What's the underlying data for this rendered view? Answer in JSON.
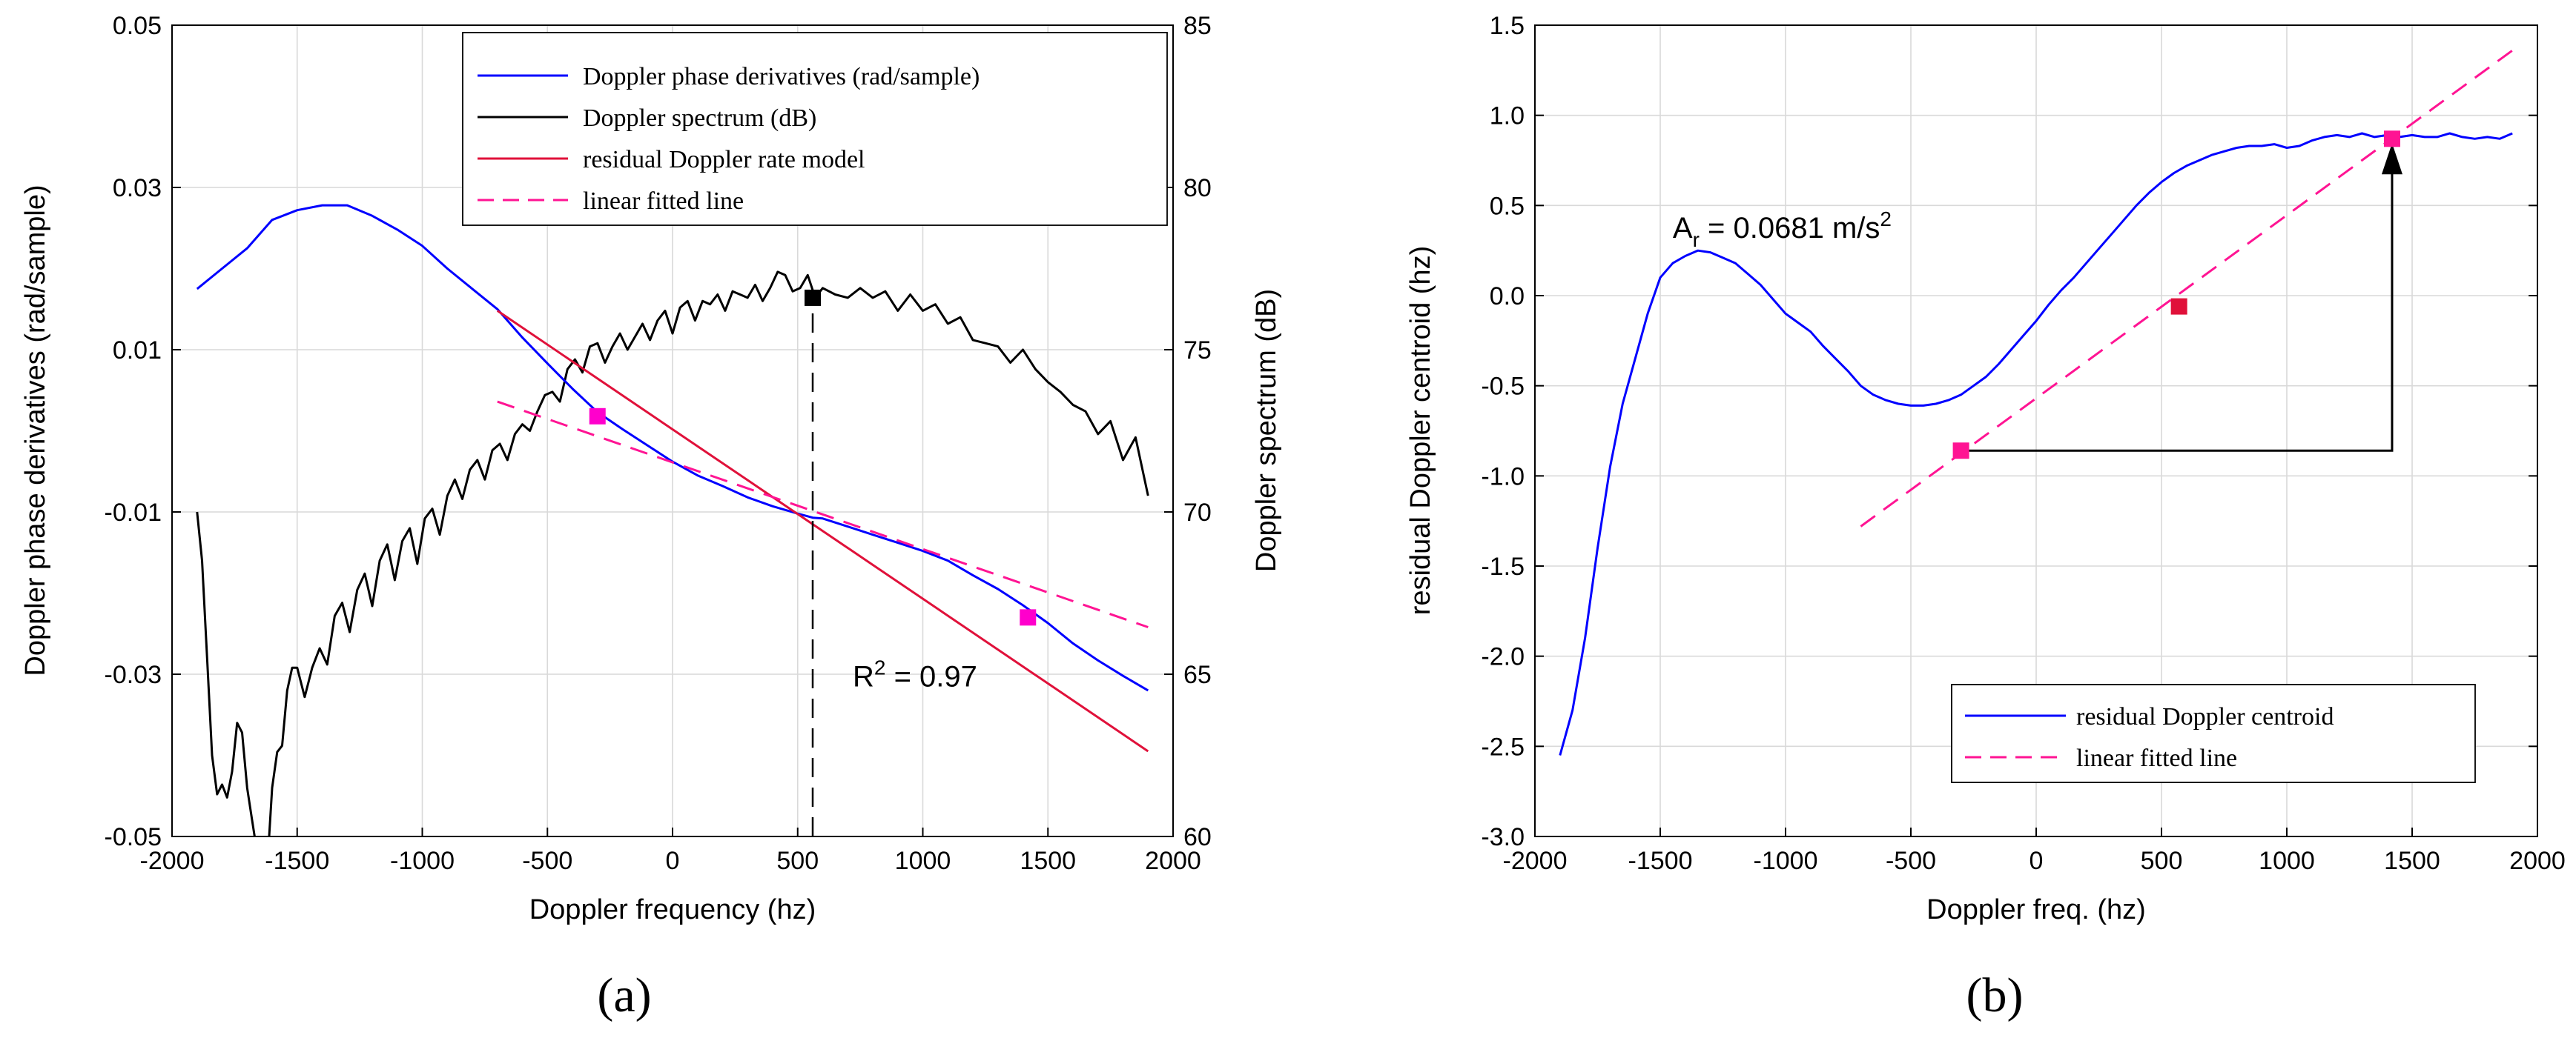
{
  "chart_data": [
    {
      "id": "a",
      "type": "line",
      "caption": "(a)",
      "xlabel": "Doppler frequency (hz)",
      "ylabel_left": "Doppler phase derivatives (rad/sample)",
      "ylabel_right": "Doppler spectrum (dB)",
      "xlim": [
        -2000,
        2000
      ],
      "ylim_left": [
        -0.05,
        0.05
      ],
      "ylim_right": [
        60,
        85
      ],
      "x_ticks": [
        "-2000",
        "-1500",
        "-1000",
        "-500",
        "0",
        "500",
        "1000",
        "1500",
        "2000"
      ],
      "y_left_ticks": [
        "-0.05",
        "-0.03",
        "-0.01",
        "0.01",
        "0.03",
        "0.05"
      ],
      "y_right_ticks": [
        "60",
        "65",
        "70",
        "75",
        "80",
        "85"
      ],
      "grid": true,
      "legend_position": "top-right",
      "series": [
        {
          "name": "Doppler phase derivatives (rad/sample)",
          "axis": "left",
          "color": "#0000ff",
          "style": "solid",
          "x": [
            -1900,
            -1800,
            -1700,
            -1600,
            -1500,
            -1400,
            -1300,
            -1200,
            -1100,
            -1000,
            -900,
            -800,
            -700,
            -600,
            -500,
            -400,
            -300,
            -200,
            -100,
            0,
            100,
            200,
            300,
            400,
            500,
            560,
            600,
            700,
            800,
            900,
            1000,
            1100,
            1200,
            1300,
            1400,
            1500,
            1600,
            1700,
            1800,
            1900
          ],
          "y": [
            0.0175,
            0.02,
            0.0225,
            0.026,
            0.0272,
            0.0278,
            0.0278,
            0.0265,
            0.0248,
            0.0228,
            0.02,
            0.0175,
            0.015,
            0.0115,
            0.0083,
            0.0052,
            0.0023,
            0.0002,
            -0.0018,
            -0.0038,
            -0.0055,
            -0.0068,
            -0.0082,
            -0.0093,
            -0.0102,
            -0.0107,
            -0.0108,
            -0.0118,
            -0.0128,
            -0.0138,
            -0.0148,
            -0.016,
            -0.0178,
            -0.0195,
            -0.0215,
            -0.0237,
            -0.0262,
            -0.0283,
            -0.0302,
            -0.032
          ]
        },
        {
          "name": "Doppler spectrum (dB)",
          "axis": "right",
          "color": "#000000",
          "style": "solid",
          "x": [
            -1900,
            -1880,
            -1860,
            -1840,
            -1820,
            -1800,
            -1780,
            -1760,
            -1740,
            -1720,
            -1700,
            -1680,
            -1660,
            -1640,
            -1620,
            -1600,
            -1580,
            -1560,
            -1540,
            -1520,
            -1500,
            -1470,
            -1440,
            -1410,
            -1380,
            -1350,
            -1320,
            -1290,
            -1260,
            -1230,
            -1200,
            -1170,
            -1140,
            -1110,
            -1080,
            -1050,
            -1020,
            -990,
            -960,
            -930,
            -900,
            -870,
            -840,
            -810,
            -780,
            -750,
            -720,
            -690,
            -660,
            -630,
            -600,
            -570,
            -540,
            -510,
            -480,
            -450,
            -420,
            -390,
            -360,
            -330,
            -300,
            -270,
            -240,
            -210,
            -180,
            -150,
            -120,
            -90,
            -60,
            -30,
            0,
            30,
            60,
            90,
            120,
            150,
            180,
            210,
            240,
            270,
            300,
            330,
            360,
            390,
            420,
            450,
            480,
            510,
            540,
            570,
            600,
            650,
            700,
            750,
            800,
            850,
            900,
            950,
            1000,
            1050,
            1100,
            1150,
            1200,
            1250,
            1300,
            1350,
            1400,
            1450,
            1500,
            1550,
            1600,
            1650,
            1700,
            1750,
            1800,
            1850,
            1900
          ],
          "y": [
            70.0,
            68.5,
            65.5,
            62.5,
            61.3,
            61.6,
            61.2,
            62.0,
            63.5,
            63.2,
            61.5,
            60.5,
            59.5,
            58.5,
            59.0,
            61.5,
            62.6,
            62.8,
            64.5,
            65.2,
            65.2,
            64.3,
            65.2,
            65.8,
            65.3,
            66.8,
            67.2,
            66.3,
            67.6,
            68.1,
            67.1,
            68.5,
            69.0,
            67.9,
            69.1,
            69.5,
            68.4,
            69.8,
            70.1,
            69.3,
            70.5,
            71.0,
            70.4,
            71.3,
            71.6,
            71.0,
            71.9,
            72.1,
            71.6,
            72.4,
            72.7,
            72.5,
            73.1,
            73.6,
            73.7,
            73.4,
            74.4,
            74.7,
            74.3,
            75.1,
            75.2,
            74.6,
            75.1,
            75.5,
            75.0,
            75.4,
            75.8,
            75.3,
            75.9,
            76.2,
            75.5,
            76.3,
            76.5,
            75.9,
            76.5,
            76.4,
            76.7,
            76.2,
            76.8,
            76.7,
            76.6,
            77.0,
            76.5,
            76.9,
            77.4,
            77.3,
            76.8,
            76.9,
            77.3,
            76.6,
            76.9,
            76.7,
            76.6,
            76.9,
            76.6,
            76.8,
            76.2,
            76.7,
            76.2,
            76.4,
            75.8,
            76.0,
            75.3,
            75.2,
            75.1,
            74.6,
            75.0,
            74.4,
            74.0,
            73.7,
            73.3,
            73.1,
            72.4,
            72.8,
            71.6,
            72.3,
            70.5
          ]
        },
        {
          "name": "residual Doppler rate model",
          "axis": "left",
          "color": "#e0113a",
          "style": "solid",
          "x": [
            -700,
            1900
          ],
          "y": [
            0.0148,
            -0.0395
          ]
        },
        {
          "name": "linear fitted line",
          "axis": "left",
          "color": "#ff1493",
          "style": "dashed",
          "x": [
            -700,
            1900
          ],
          "y": [
            0.0036,
            -0.0242
          ]
        }
      ],
      "markers": [
        {
          "x": -300,
          "y": 0.0018,
          "axis": "left",
          "color": "#ff00cc"
        },
        {
          "x": 1420,
          "y": -0.023,
          "axis": "left",
          "color": "#ff00cc"
        },
        {
          "x": 560,
          "y": 76.6,
          "axis": "right",
          "color": "#000000"
        }
      ],
      "vline": {
        "x": 560,
        "from_left": -0.05,
        "to_right": 76.6
      },
      "annotation": {
        "base": "R",
        "sup": "2",
        "rest": " = 0.97",
        "x": 720,
        "y": -0.0315
      }
    },
    {
      "id": "b",
      "type": "line",
      "caption": "(b)",
      "xlabel": "Doppler freq. (hz)",
      "ylabel": "residual Doppler centroid (hz)",
      "xlim": [
        -2000,
        2000
      ],
      "ylim": [
        -3.0,
        1.5
      ],
      "x_ticks": [
        "-2000",
        "-1500",
        "-1000",
        "-500",
        "0",
        "500",
        "1000",
        "1500",
        "2000"
      ],
      "y_ticks": [
        "-3.0",
        "-2.5",
        "-2.0",
        "-1.5",
        "-1.0",
        "-0.5",
        "0.0",
        "0.5",
        "1.0",
        "1.5"
      ],
      "grid": true,
      "legend_position": "bottom-right",
      "series": [
        {
          "name": "residual Doppler centroid",
          "color": "#0000ff",
          "style": "solid",
          "x": [
            -1900,
            -1850,
            -1800,
            -1750,
            -1700,
            -1650,
            -1600,
            -1550,
            -1500,
            -1450,
            -1400,
            -1350,
            -1300,
            -1250,
            -1200,
            -1150,
            -1100,
            -1050,
            -1000,
            -950,
            -900,
            -850,
            -800,
            -750,
            -700,
            -650,
            -600,
            -550,
            -500,
            -450,
            -400,
            -350,
            -300,
            -250,
            -200,
            -150,
            -100,
            -50,
            0,
            50,
            100,
            150,
            200,
            250,
            300,
            350,
            400,
            450,
            500,
            550,
            600,
            650,
            700,
            750,
            800,
            850,
            900,
            950,
            1000,
            1050,
            1100,
            1150,
            1200,
            1250,
            1300,
            1350,
            1400,
            1450,
            1500,
            1550,
            1600,
            1650,
            1700,
            1750,
            1800,
            1850,
            1900
          ],
          "y": [
            -2.55,
            -2.3,
            -1.9,
            -1.4,
            -0.95,
            -0.6,
            -0.35,
            -0.1,
            0.1,
            0.18,
            0.22,
            0.25,
            0.24,
            0.21,
            0.18,
            0.12,
            0.06,
            -0.02,
            -0.1,
            -0.15,
            -0.2,
            -0.28,
            -0.35,
            -0.42,
            -0.5,
            -0.55,
            -0.58,
            -0.6,
            -0.61,
            -0.61,
            -0.6,
            -0.58,
            -0.55,
            -0.5,
            -0.45,
            -0.38,
            -0.3,
            -0.22,
            -0.14,
            -0.05,
            0.03,
            0.1,
            0.18,
            0.26,
            0.34,
            0.42,
            0.5,
            0.57,
            0.63,
            0.68,
            0.72,
            0.75,
            0.78,
            0.8,
            0.82,
            0.83,
            0.83,
            0.84,
            0.82,
            0.83,
            0.86,
            0.88,
            0.89,
            0.88,
            0.9,
            0.88,
            0.89,
            0.88,
            0.89,
            0.88,
            0.88,
            0.9,
            0.88,
            0.87,
            0.88,
            0.87,
            0.9
          ]
        },
        {
          "name": "linear fitted line",
          "color": "#ff1493",
          "style": "dashed",
          "x": [
            -700,
            1900
          ],
          "y": [
            -1.28,
            1.36
          ]
        }
      ],
      "markers": [
        {
          "x": -300,
          "y": -0.86,
          "color": "#ff1493"
        },
        {
          "x": 570,
          "y": -0.06,
          "color": "#e0113a"
        },
        {
          "x": 1420,
          "y": 0.87,
          "color": "#ff1493"
        }
      ],
      "step_arrow": {
        "x0": -300,
        "y0": -0.86,
        "x1": 1420,
        "y1": 0.87
      },
      "annotation": {
        "base": "A",
        "sub": "r",
        "rest": " = 0.0681 m/s",
        "sup": "2",
        "x": -1450,
        "y": 0.32
      }
    }
  ]
}
